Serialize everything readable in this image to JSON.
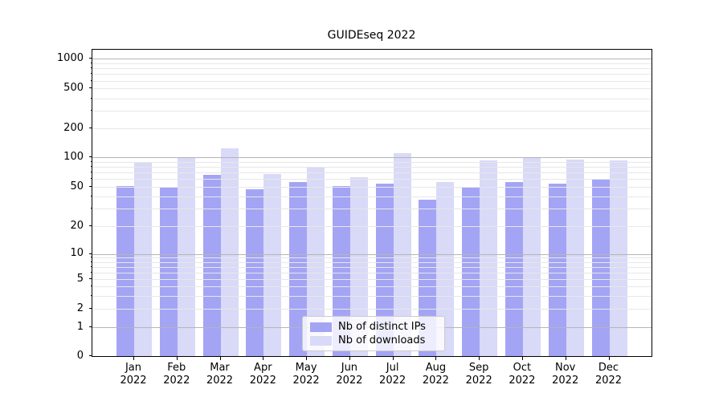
{
  "title": "GUIDEseq 2022",
  "chart_data": {
    "type": "bar",
    "title": "GUIDEseq 2022",
    "categories": [
      "Jan 2022",
      "Feb 2022",
      "Mar 2022",
      "Apr 2022",
      "May 2022",
      "Jun 2022",
      "Jul 2022",
      "Aug 2022",
      "Sep 2022",
      "Oct 2022",
      "Nov 2022",
      "Dec 2022"
    ],
    "month_labels": [
      "Jan",
      "Feb",
      "Mar",
      "Apr",
      "May",
      "Jun",
      "Jul",
      "Aug",
      "Sep",
      "Oct",
      "Nov",
      "Dec"
    ],
    "year_label": "2022",
    "series": [
      {
        "name": "Nb of distinct IPs",
        "color": "#a4a4f5",
        "values": [
          51,
          49,
          66,
          47,
          56,
          51,
          54,
          37,
          49,
          56,
          54,
          60
        ]
      },
      {
        "name": "Nb of downloads",
        "color": "#d9d9f8",
        "values": [
          90,
          101,
          125,
          68,
          81,
          63,
          110,
          56,
          94,
          101,
          95,
          93
        ]
      }
    ],
    "yscale": "log-like with 0 baseline",
    "yticks": [
      0,
      1,
      2,
      5,
      10,
      20,
      50,
      100,
      200,
      500,
      1000
    ],
    "ytick_labels": [
      "0",
      "1",
      "2",
      "5",
      "10",
      "20",
      "50",
      "100",
      "200",
      "500",
      "1000"
    ],
    "ylim": [
      0,
      1000
    ],
    "grid": "horizontal major and minor lines drawn over bars",
    "legend_position": "lower center"
  },
  "colors": {
    "bar_dark": "#a4a4f5",
    "bar_light": "#d9d9f8",
    "grid_major": "#b5b5b5",
    "grid_minor": "#e7e7e7",
    "spine": "#000000",
    "background": "#ffffff",
    "legend_border": "#cccccc"
  }
}
